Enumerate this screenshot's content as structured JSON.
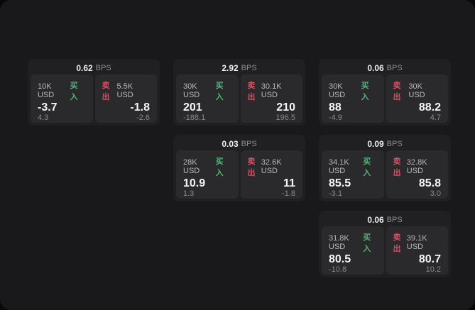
{
  "labels": {
    "buy": "买入",
    "sell": "卖出",
    "bps": "BPS"
  },
  "colors": {
    "buy_green": "#53b578",
    "sell_red": "#d64f63",
    "panel_bg": "#19191b",
    "card_bg": "#202022",
    "tile_bg": "#2a2a2c"
  },
  "cards": [
    {
      "bps": "0.62",
      "buy": {
        "amount": "10K USD",
        "value": "-3.7",
        "delta": "4.3"
      },
      "sell": {
        "amount": "5.5K USD",
        "value": "-1.8",
        "delta": "-2.6"
      }
    },
    {
      "bps": "2.92",
      "buy": {
        "amount": "30K USD",
        "value": "201",
        "delta": "-188.1"
      },
      "sell": {
        "amount": "30.1K USD",
        "value": "210",
        "delta": "196.5"
      }
    },
    {
      "bps": "0.06",
      "buy": {
        "amount": "30K USD",
        "value": "88",
        "delta": "-4.9"
      },
      "sell": {
        "amount": "30K USD",
        "value": "88.2",
        "delta": "4.7"
      }
    },
    {
      "bps": "0.03",
      "buy": {
        "amount": "28K USD",
        "value": "10.9",
        "delta": "1.3"
      },
      "sell": {
        "amount": "32.6K USD",
        "value": "11",
        "delta": "-1.8"
      }
    },
    {
      "bps": "0.09",
      "buy": {
        "amount": "34.1K USD",
        "value": "85.5",
        "delta": "-3.1"
      },
      "sell": {
        "amount": "32.8K USD",
        "value": "85.8",
        "delta": "3.0"
      }
    },
    {
      "bps": "0.06",
      "buy": {
        "amount": "31.8K USD",
        "value": "80.5",
        "delta": "-10.8"
      },
      "sell": {
        "amount": "39.1K USD",
        "value": "80.7",
        "delta": "10.2"
      }
    }
  ]
}
